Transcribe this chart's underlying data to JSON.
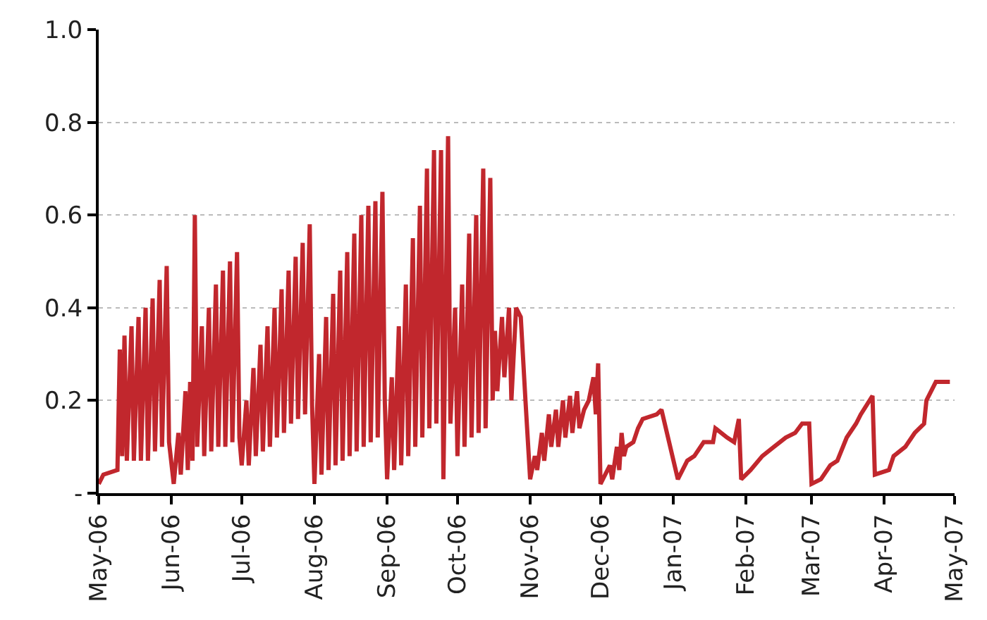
{
  "chart_data": {
    "type": "line",
    "x": [
      "2006-05-01",
      "2006-05-03",
      "2006-05-09",
      "2006-05-10",
      "2006-05-11",
      "2006-05-12",
      "2006-05-13",
      "2006-05-15",
      "2006-05-16",
      "2006-05-18",
      "2006-05-19",
      "2006-05-21",
      "2006-05-22",
      "2006-05-24",
      "2006-05-25",
      "2006-05-27",
      "2006-05-28",
      "2006-05-30",
      "2006-05-31",
      "2006-06-02",
      "2006-06-04",
      "2006-06-05",
      "2006-06-07",
      "2006-06-08",
      "2006-06-09",
      "2006-06-10",
      "2006-06-11",
      "2006-06-12",
      "2006-06-14",
      "2006-06-15",
      "2006-06-17",
      "2006-06-18",
      "2006-06-20",
      "2006-06-21",
      "2006-06-23",
      "2006-06-24",
      "2006-06-26",
      "2006-06-27",
      "2006-06-29",
      "2006-06-30",
      "2006-07-01",
      "2006-07-03",
      "2006-07-04",
      "2006-07-06",
      "2006-07-07",
      "2006-07-09",
      "2006-07-10",
      "2006-07-12",
      "2006-07-13",
      "2006-07-15",
      "2006-07-16",
      "2006-07-18",
      "2006-07-19",
      "2006-07-21",
      "2006-07-22",
      "2006-07-24",
      "2006-07-25",
      "2006-07-27",
      "2006-07-28",
      "2006-07-30",
      "2006-07-31",
      "2006-08-01",
      "2006-08-03",
      "2006-08-04",
      "2006-08-06",
      "2006-08-07",
      "2006-08-09",
      "2006-08-10",
      "2006-08-12",
      "2006-08-13",
      "2006-08-15",
      "2006-08-16",
      "2006-08-18",
      "2006-08-19",
      "2006-08-21",
      "2006-08-22",
      "2006-08-24",
      "2006-08-25",
      "2006-08-27",
      "2006-08-28",
      "2006-08-30",
      "2006-08-31",
      "2006-09-01",
      "2006-09-03",
      "2006-09-04",
      "2006-09-06",
      "2006-09-07",
      "2006-09-09",
      "2006-09-10",
      "2006-09-12",
      "2006-09-13",
      "2006-09-15",
      "2006-09-16",
      "2006-09-18",
      "2006-09-19",
      "2006-09-21",
      "2006-09-22",
      "2006-09-24",
      "2006-09-25",
      "2006-09-27",
      "2006-09-28",
      "2006-09-30",
      "2006-10-01",
      "2006-10-03",
      "2006-10-04",
      "2006-10-06",
      "2006-10-07",
      "2006-10-09",
      "2006-10-10",
      "2006-10-12",
      "2006-10-13",
      "2006-10-15",
      "2006-10-16",
      "2006-10-17",
      "2006-10-18",
      "2006-10-20",
      "2006-10-21",
      "2006-10-23",
      "2006-10-24",
      "2006-10-26",
      "2006-10-28",
      "2006-10-30",
      "2006-11-01",
      "2006-11-03",
      "2006-11-04",
      "2006-11-06",
      "2006-11-07",
      "2006-11-09",
      "2006-11-10",
      "2006-11-12",
      "2006-11-13",
      "2006-11-15",
      "2006-11-16",
      "2006-11-18",
      "2006-11-19",
      "2006-11-21",
      "2006-11-22",
      "2006-11-24",
      "2006-11-26",
      "2006-11-28",
      "2006-11-29",
      "2006-11-30",
      "2006-12-01",
      "2006-12-05",
      "2006-12-06",
      "2006-12-08",
      "2006-12-09",
      "2006-12-10",
      "2006-12-11",
      "2006-12-12",
      "2006-12-15",
      "2006-12-17",
      "2006-12-19",
      "2006-12-25",
      "2006-12-27",
      "2007-01-03",
      "2007-01-07",
      "2007-01-10",
      "2007-01-14",
      "2007-01-18",
      "2007-01-19",
      "2007-01-24",
      "2007-01-27",
      "2007-01-29",
      "2007-01-30",
      "2007-02-03",
      "2007-02-08",
      "2007-02-13",
      "2007-02-18",
      "2007-02-22",
      "2007-02-25",
      "2007-02-28",
      "2007-03-01",
      "2007-03-05",
      "2007-03-09",
      "2007-03-12",
      "2007-03-16",
      "2007-03-20",
      "2007-03-22",
      "2007-03-27",
      "2007-03-28",
      "2007-04-03",
      "2007-04-05",
      "2007-04-10",
      "2007-04-14",
      "2007-04-18",
      "2007-04-19",
      "2007-04-23",
      "2007-04-29"
    ],
    "series": [
      {
        "color": "#c1272d",
        "values": [
          0.02,
          0.04,
          0.05,
          0.31,
          0.08,
          0.34,
          0.07,
          0.36,
          0.07,
          0.38,
          0.07,
          0.4,
          0.07,
          0.42,
          0.09,
          0.46,
          0.1,
          0.49,
          0.11,
          0.02,
          0.13,
          0.04,
          0.22,
          0.05,
          0.24,
          0.07,
          0.6,
          0.1,
          0.36,
          0.08,
          0.4,
          0.09,
          0.45,
          0.1,
          0.48,
          0.1,
          0.5,
          0.11,
          0.52,
          0.12,
          0.06,
          0.2,
          0.06,
          0.27,
          0.08,
          0.32,
          0.09,
          0.36,
          0.1,
          0.4,
          0.12,
          0.44,
          0.13,
          0.48,
          0.15,
          0.51,
          0.16,
          0.54,
          0.17,
          0.58,
          0.19,
          0.02,
          0.3,
          0.04,
          0.38,
          0.05,
          0.43,
          0.06,
          0.48,
          0.07,
          0.52,
          0.08,
          0.56,
          0.09,
          0.6,
          0.1,
          0.62,
          0.11,
          0.63,
          0.12,
          0.65,
          0.2,
          0.03,
          0.25,
          0.05,
          0.36,
          0.06,
          0.45,
          0.08,
          0.55,
          0.1,
          0.62,
          0.12,
          0.7,
          0.14,
          0.74,
          0.15,
          0.74,
          0.03,
          0.77,
          0.15,
          0.4,
          0.08,
          0.45,
          0.1,
          0.56,
          0.12,
          0.6,
          0.13,
          0.7,
          0.14,
          0.68,
          0.2,
          0.35,
          0.22,
          0.38,
          0.25,
          0.4,
          0.2,
          0.4,
          0.38,
          0.2,
          0.03,
          0.08,
          0.05,
          0.13,
          0.07,
          0.17,
          0.1,
          0.18,
          0.1,
          0.2,
          0.12,
          0.21,
          0.13,
          0.22,
          0.14,
          0.18,
          0.2,
          0.25,
          0.17,
          0.28,
          0.02,
          0.06,
          0.03,
          0.1,
          0.05,
          0.13,
          0.08,
          0.1,
          0.11,
          0.14,
          0.16,
          0.17,
          0.18,
          0.03,
          0.07,
          0.08,
          0.11,
          0.11,
          0.14,
          0.12,
          0.11,
          0.16,
          0.03,
          0.05,
          0.08,
          0.1,
          0.12,
          0.13,
          0.15,
          0.15,
          0.02,
          0.03,
          0.06,
          0.07,
          0.12,
          0.15,
          0.17,
          0.21,
          0.04,
          0.05,
          0.08,
          0.1,
          0.13,
          0.15,
          0.2,
          0.24,
          0.24
        ]
      }
    ],
    "xlim": [
      "2006-05-01",
      "2007-05-01"
    ],
    "xticks": [
      {
        "value": "2006-05-01",
        "label": "May-06"
      },
      {
        "value": "2006-06-01",
        "label": "Jun-06"
      },
      {
        "value": "2006-07-01",
        "label": "Jul-06"
      },
      {
        "value": "2006-08-01",
        "label": "Aug-06"
      },
      {
        "value": "2006-09-01",
        "label": "Sep-06"
      },
      {
        "value": "2006-10-01",
        "label": "Oct-06"
      },
      {
        "value": "2006-11-01",
        "label": "Nov-06"
      },
      {
        "value": "2006-12-01",
        "label": "Dec-06"
      },
      {
        "value": "2007-01-01",
        "label": "Jan-07"
      },
      {
        "value": "2007-02-01",
        "label": "Feb-07"
      },
      {
        "value": "2007-03-01",
        "label": "Mar-07"
      },
      {
        "value": "2007-04-01",
        "label": "Apr-07"
      },
      {
        "value": "2007-05-01",
        "label": "May-07"
      }
    ],
    "ylim": [
      0,
      1
    ],
    "yticks": [
      {
        "value": 0,
        "label": "-"
      },
      {
        "value": 0.2,
        "label": "0.2"
      },
      {
        "value": 0.4,
        "label": "0.4"
      },
      {
        "value": 0.6,
        "label": "0.6"
      },
      {
        "value": 0.8,
        "label": "0.8"
      },
      {
        "value": 1,
        "label": "1.0"
      }
    ],
    "grid": "y",
    "legend": false,
    "marker": "none",
    "line_style": "solid"
  }
}
